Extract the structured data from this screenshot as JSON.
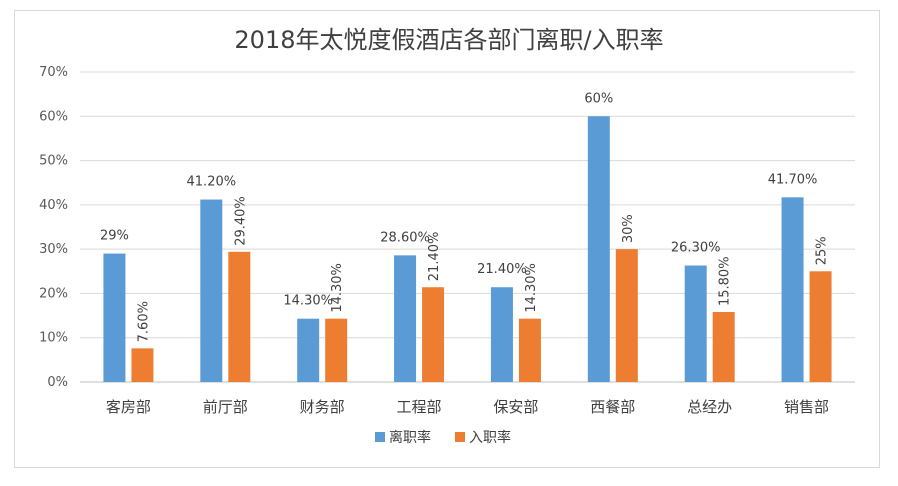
{
  "chart_data": {
    "type": "bar",
    "title": "2018年太悦度假酒店各部门离职/入职率",
    "categories": [
      "客房部",
      "前厅部",
      "财务部",
      "工程部",
      "保安部",
      "西餐部",
      "总经办",
      "销售部"
    ],
    "series": [
      {
        "name": "离职率",
        "color": "#5b9bd5",
        "values": [
          29,
          41.2,
          14.3,
          28.6,
          21.4,
          60,
          26.3,
          41.7
        ],
        "labels": [
          "29%",
          "41.20%",
          "14.30%",
          "28.60%",
          "21.40%",
          "60%",
          "26.30%",
          "41.70%"
        ]
      },
      {
        "name": "入职率",
        "color": "#ed7d31",
        "values": [
          7.6,
          29.4,
          14.3,
          21.4,
          14.3,
          30,
          15.8,
          25
        ],
        "labels": [
          "7.60%",
          "29.40%",
          "14.30%",
          "21.40%",
          "14.30%",
          "30%",
          "15.80%",
          "25%"
        ]
      }
    ],
    "y_ticks": [
      "0%",
      "10%",
      "20%",
      "30%",
      "40%",
      "50%",
      "60%",
      "70%"
    ],
    "ylim": [
      0,
      70
    ],
    "grid": true,
    "legend_position": "bottom"
  }
}
